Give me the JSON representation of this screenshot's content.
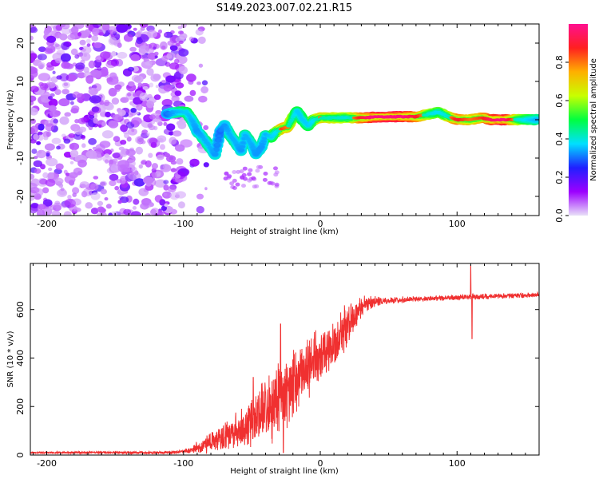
{
  "title": "S149.2023.007.02.21.R15",
  "colors": {
    "snr_line": "#f03030",
    "background": "#ffffff",
    "colorbar_stops": [
      "#e8e0f8",
      "#9c00ff",
      "#2020ff",
      "#00e0ff",
      "#00ff40",
      "#c8ff00",
      "#ffb000",
      "#ff2020",
      "#ff1090"
    ]
  },
  "chart_data": [
    {
      "type": "heatmap",
      "name": "spectrogram",
      "xlabel": "Height of straight line (km)",
      "ylabel": "Frequency (Hz)",
      "xlim": [
        -212,
        160
      ],
      "ylim": [
        -25,
        25
      ],
      "xticks": [
        -200,
        -100,
        0,
        100
      ],
      "xtick_labels": [
        "-200",
        "-100",
        "0",
        "100"
      ],
      "yticks": [
        -20,
        -10,
        0,
        10,
        20
      ],
      "ytick_labels": [
        "-20",
        "-10",
        "0",
        "10",
        "20"
      ],
      "noise_region_x": [
        -212,
        -100
      ],
      "ridge": [
        {
          "x": -112,
          "y": 1.5,
          "a": 0.35
        },
        {
          "x": -105,
          "y": 2.0,
          "a": 0.45
        },
        {
          "x": -98,
          "y": 2.0,
          "a": 0.5
        },
        {
          "x": -94,
          "y": 0.0,
          "a": 0.45
        },
        {
          "x": -90,
          "y": -3.0,
          "a": 0.4
        },
        {
          "x": -85,
          "y": -5.0,
          "a": 0.45
        },
        {
          "x": -80,
          "y": -7.5,
          "a": 0.45
        },
        {
          "x": -77,
          "y": -9.0,
          "a": 0.4
        },
        {
          "x": -73,
          "y": -3.0,
          "a": 0.35
        },
        {
          "x": -70,
          "y": -1.5,
          "a": 0.4
        },
        {
          "x": -66,
          "y": -4.0,
          "a": 0.45
        },
        {
          "x": -62,
          "y": -6.0,
          "a": 0.45
        },
        {
          "x": -58,
          "y": -8.0,
          "a": 0.4
        },
        {
          "x": -55,
          "y": -4.0,
          "a": 0.45
        },
        {
          "x": -51,
          "y": -6.0,
          "a": 0.45
        },
        {
          "x": -47,
          "y": -9.0,
          "a": 0.4
        },
        {
          "x": -43,
          "y": -7.0,
          "a": 0.4
        },
        {
          "x": -40,
          "y": -4.0,
          "a": 0.45
        },
        {
          "x": -36,
          "y": -4.5,
          "a": 0.5
        },
        {
          "x": -32,
          "y": -3.0,
          "a": 0.55
        },
        {
          "x": -28,
          "y": -2.2,
          "a": 0.75
        },
        {
          "x": -24,
          "y": -2.0,
          "a": 0.7
        },
        {
          "x": -20,
          "y": 0.5,
          "a": 0.6
        },
        {
          "x": -17,
          "y": 2.2,
          "a": 0.5
        },
        {
          "x": -13,
          "y": 0.0,
          "a": 0.5
        },
        {
          "x": -9,
          "y": -1.5,
          "a": 0.5
        },
        {
          "x": -5,
          "y": 0.0,
          "a": 0.55
        },
        {
          "x": 0,
          "y": 0.5,
          "a": 0.7
        },
        {
          "x": 10,
          "y": 0.5,
          "a": 0.65
        },
        {
          "x": 20,
          "y": 0.5,
          "a": 0.6
        },
        {
          "x": 30,
          "y": 0.5,
          "a": 0.8
        },
        {
          "x": 40,
          "y": 0.7,
          "a": 0.9
        },
        {
          "x": 50,
          "y": 0.8,
          "a": 0.92
        },
        {
          "x": 60,
          "y": 0.8,
          "a": 0.9
        },
        {
          "x": 70,
          "y": 0.8,
          "a": 0.8
        },
        {
          "x": 80,
          "y": 1.5,
          "a": 0.6
        },
        {
          "x": 86,
          "y": 2.0,
          "a": 0.55
        },
        {
          "x": 92,
          "y": 1.0,
          "a": 0.6
        },
        {
          "x": 100,
          "y": 0.0,
          "a": 0.8
        },
        {
          "x": 110,
          "y": 0.0,
          "a": 0.7
        },
        {
          "x": 118,
          "y": 0.5,
          "a": 0.75
        },
        {
          "x": 125,
          "y": 0.0,
          "a": 0.85
        },
        {
          "x": 135,
          "y": 0.0,
          "a": 0.9
        },
        {
          "x": 145,
          "y": 0.0,
          "a": 0.6
        },
        {
          "x": 158,
          "y": 0.0,
          "a": 0.45
        }
      ]
    },
    {
      "type": "colorbar",
      "name": "colorbar",
      "label": "Normalized spectral amplitude",
      "range": [
        0,
        1
      ],
      "ticks": [
        0.0,
        0.2,
        0.4,
        0.6,
        0.8
      ],
      "tick_labels": [
        "0.0",
        "0.2",
        "0.4",
        "0.6",
        "0.8"
      ]
    },
    {
      "type": "line",
      "name": "snr",
      "xlabel": "Height of straight line (km)",
      "ylabel": "SNR (10 * v/v)",
      "xlim": [
        -212,
        160
      ],
      "ylim": [
        0,
        790
      ],
      "xticks": [
        -200,
        -100,
        0,
        100
      ],
      "xtick_labels": [
        "-200",
        "-100",
        "0",
        "100"
      ],
      "yticks": [
        0,
        200,
        400,
        600
      ],
      "ytick_labels": [
        "0",
        "200",
        "400",
        "600"
      ],
      "trend": [
        {
          "x": -212,
          "y": 10
        },
        {
          "x": -110,
          "y": 10
        },
        {
          "x": -100,
          "y": 15
        },
        {
          "x": -85,
          "y": 40
        },
        {
          "x": -70,
          "y": 80
        },
        {
          "x": -55,
          "y": 120
        },
        {
          "x": -45,
          "y": 170
        },
        {
          "x": -35,
          "y": 200
        },
        {
          "x": -25,
          "y": 260
        },
        {
          "x": -15,
          "y": 330
        },
        {
          "x": -5,
          "y": 380
        },
        {
          "x": 5,
          "y": 430
        },
        {
          "x": 15,
          "y": 500
        },
        {
          "x": 25,
          "y": 570
        },
        {
          "x": 32,
          "y": 620
        },
        {
          "x": 40,
          "y": 635
        },
        {
          "x": 60,
          "y": 640
        },
        {
          "x": 80,
          "y": 645
        },
        {
          "x": 100,
          "y": 650
        },
        {
          "x": 130,
          "y": 655
        },
        {
          "x": 160,
          "y": 660
        }
      ],
      "noise_amplitude": [
        {
          "x": -212,
          "y": 4
        },
        {
          "x": -100,
          "y": 8
        },
        {
          "x": -85,
          "y": 40
        },
        {
          "x": -60,
          "y": 90
        },
        {
          "x": -40,
          "y": 160
        },
        {
          "x": -20,
          "y": 170
        },
        {
          "x": 0,
          "y": 130
        },
        {
          "x": 20,
          "y": 100
        },
        {
          "x": 32,
          "y": 40
        },
        {
          "x": 50,
          "y": 15
        },
        {
          "x": 160,
          "y": 12
        }
      ],
      "spikes": [
        {
          "x": -49,
          "y": 320
        },
        {
          "x": -40,
          "y": 260
        },
        {
          "x": -29,
          "y": 540
        },
        {
          "x": -27,
          "y": 10
        },
        {
          "x": 110,
          "y": 780
        },
        {
          "x": 111,
          "y": 480
        }
      ]
    }
  ]
}
